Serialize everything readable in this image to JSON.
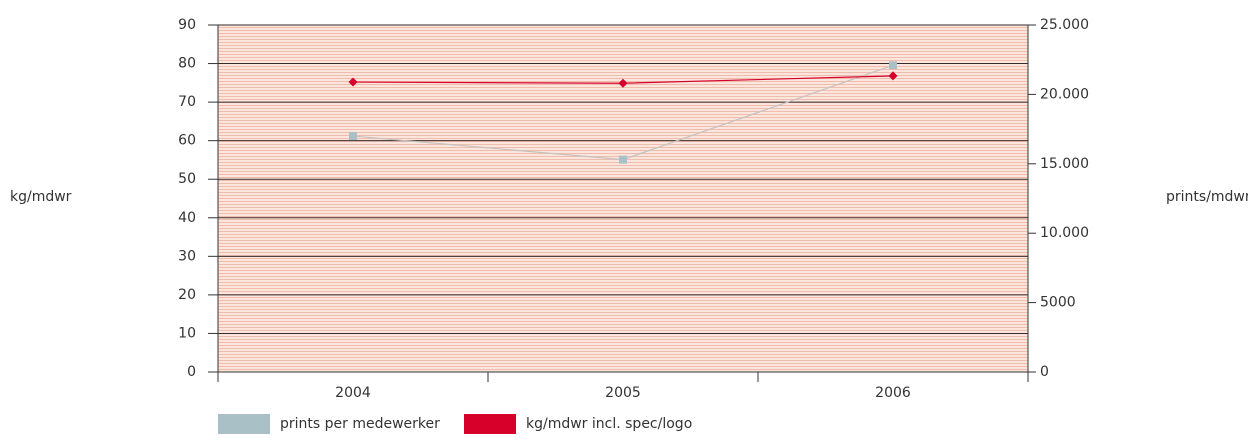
{
  "chart_data": {
    "type": "line",
    "categories": [
      "2004",
      "2005",
      "2006"
    ],
    "series": [
      {
        "name": "prints per medewerker",
        "color": "#a9c0c6",
        "line_color": "#c3c3c3",
        "marker": "square",
        "axis": "y2",
        "values": [
          17000,
          15300,
          22100
        ]
      },
      {
        "name": "kg/mdwr incl. spec/logo",
        "color": "#d6002a",
        "line_color": "#d6002a",
        "marker": "diamond",
        "axis": "y",
        "values": [
          75.2,
          74.9,
          76.8
        ]
      }
    ],
    "ylabel": "kg/mdwr",
    "y2label": "prints/mdwr",
    "ylim": [
      0,
      90
    ],
    "yticks": [
      0,
      10,
      20,
      30,
      40,
      50,
      60,
      70,
      80,
      90
    ],
    "y2lim": [
      0,
      25000
    ],
    "y2ticks": [
      0,
      5000,
      {
        "value": 10000,
        "label": "10.000"
      },
      {
        "value": 15000,
        "label": "15.000"
      },
      {
        "value": 20000,
        "label": "20.000"
      },
      {
        "value": 25000,
        "label": "25.000"
      }
    ],
    "grid": true
  }
}
